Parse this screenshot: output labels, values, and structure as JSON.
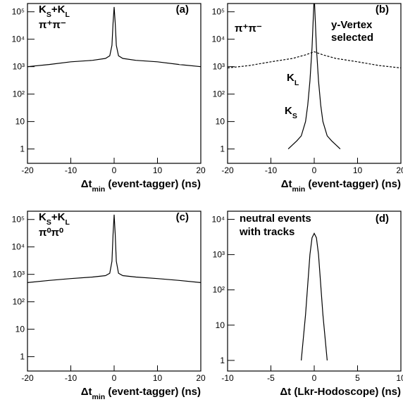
{
  "chart_data": [
    {
      "type": "line",
      "log_y": true,
      "xlim": [
        -20,
        20
      ],
      "xticks": [
        -20,
        -10,
        0,
        10,
        20
      ],
      "ylim": [
        0.3,
        200000
      ],
      "yticks": [
        1,
        10,
        {
          "value": 100,
          "label": "10²"
        },
        {
          "value": 1000,
          "label": "10³"
        },
        {
          "value": 10000,
          "label": "10⁴"
        },
        {
          "value": 100000,
          "label": "10⁵"
        }
      ],
      "xlabel": [
        {
          "t": "Δt"
        },
        {
          "t": "min",
          "sub": true
        },
        {
          "t": " (event-tagger) (ns)"
        }
      ],
      "annotations": [
        {
          "parts": [
            {
              "t": "(a)"
            }
          ]
        },
        {
          "parts": [
            {
              "t": "K"
            },
            {
              "t": "S",
              "sub": true
            },
            {
              "t": "+K"
            },
            {
              "t": "L",
              "sub": true
            }
          ]
        },
        {
          "parts": [
            {
              "t": "π⁺π⁻"
            }
          ]
        }
      ],
      "series": [
        {
          "color": "#000",
          "x": [
            -20,
            -15,
            -10,
            -5,
            -2,
            -1,
            -0.5,
            -0.25,
            0,
            0.25,
            0.5,
            1,
            2,
            5,
            10,
            15,
            20
          ],
          "values": [
            1000,
            1200,
            1500,
            1700,
            2000,
            2500,
            6000,
            40000,
            150000,
            40000,
            6000,
            2500,
            2000,
            1700,
            1500,
            1200,
            1000
          ]
        }
      ]
    },
    {
      "type": "line",
      "log_y": true,
      "xlim": [
        -20,
        20
      ],
      "xticks": [
        -20,
        -10,
        0,
        10,
        20
      ],
      "ylim": [
        0.3,
        200000
      ],
      "yticks": [
        1,
        10,
        {
          "value": 100,
          "label": "10²"
        },
        {
          "value": 1000,
          "label": "10³"
        },
        {
          "value": 10000,
          "label": "10⁴"
        },
        {
          "value": 100000,
          "label": "10⁵"
        }
      ],
      "xlabel": [
        {
          "t": "Δt"
        },
        {
          "t": "min",
          "sub": true
        },
        {
          "t": " (event-tagger) (ns)"
        }
      ],
      "annotations": [
        {
          "parts": [
            {
              "t": "(b)"
            }
          ]
        },
        {
          "parts": [
            {
              "t": "π⁺π⁻"
            }
          ]
        },
        {
          "parts": [
            {
              "t": "y-Vertex"
            }
          ]
        },
        {
          "parts": [
            {
              "t": "selected"
            }
          ]
        },
        {
          "parts": [
            {
              "t": "K"
            },
            {
              "t": "L",
              "sub": true
            }
          ]
        },
        {
          "parts": [
            {
              "t": "K"
            },
            {
              "t": "S",
              "sub": true
            }
          ]
        }
      ],
      "series": [
        {
          "color": "#000",
          "dash": true,
          "x": [
            -20,
            -15,
            -10,
            -5,
            -2,
            0,
            2,
            5,
            10,
            15,
            20
          ],
          "values": [
            900,
            1100,
            1500,
            2000,
            2700,
            3500,
            2700,
            2000,
            1500,
            1100,
            900
          ]
        },
        {
          "color": "#000",
          "x": [
            -6,
            -4,
            -3,
            -2,
            -1.5,
            -1,
            -0.5,
            0,
            0.5,
            1,
            1.5,
            2,
            3,
            4,
            6
          ],
          "values": [
            1,
            2,
            3,
            10,
            40,
            300,
            5000,
            400000,
            5000,
            300,
            40,
            10,
            3,
            2,
            1
          ]
        }
      ]
    },
    {
      "type": "line",
      "log_y": true,
      "xlim": [
        -20,
        20
      ],
      "xticks": [
        -20,
        -10,
        0,
        10,
        20
      ],
      "ylim": [
        0.3,
        200000
      ],
      "yticks": [
        1,
        10,
        {
          "value": 100,
          "label": "10²"
        },
        {
          "value": 1000,
          "label": "10³"
        },
        {
          "value": 10000,
          "label": "10⁴"
        },
        {
          "value": 100000,
          "label": "10⁵"
        }
      ],
      "xlabel": [
        {
          "t": "Δt"
        },
        {
          "t": "min",
          "sub": true
        },
        {
          "t": " (event-tagger) (ns)"
        }
      ],
      "annotations": [
        {
          "parts": [
            {
              "t": "(c)"
            }
          ]
        },
        {
          "parts": [
            {
              "t": "K"
            },
            {
              "t": "S",
              "sub": true
            },
            {
              "t": "+K"
            },
            {
              "t": "L",
              "sub": true
            }
          ]
        },
        {
          "parts": [
            {
              "t": "π⁰π⁰"
            }
          ]
        }
      ],
      "series": [
        {
          "color": "#000",
          "x": [
            -20,
            -15,
            -10,
            -5,
            -2,
            -1,
            -0.5,
            -0.25,
            0,
            0.25,
            0.5,
            1,
            2,
            5,
            10,
            15,
            20
          ],
          "values": [
            500,
            600,
            700,
            800,
            900,
            1100,
            3000,
            30000,
            150000,
            30000,
            3000,
            1100,
            900,
            800,
            700,
            600,
            500
          ]
        }
      ]
    },
    {
      "type": "line",
      "log_y": true,
      "xlim": [
        -10,
        10
      ],
      "xticks": [
        -10,
        -5,
        0,
        5,
        10
      ],
      "ylim": [
        0.5,
        17000
      ],
      "yticks": [
        1,
        10,
        {
          "value": 100,
          "label": "10²"
        },
        {
          "value": 1000,
          "label": "10³"
        },
        {
          "value": 10000,
          "label": "10⁴"
        }
      ],
      "xlabel": [
        {
          "t": "Δt (Lkr-Hodoscope) (ns)"
        }
      ],
      "annotations": [
        {
          "parts": [
            {
              "t": "(d)"
            }
          ]
        },
        {
          "parts": [
            {
              "t": "neutral events"
            }
          ]
        },
        {
          "parts": [
            {
              "t": "with tracks"
            }
          ]
        }
      ],
      "series": [
        {
          "color": "#000",
          "x": [
            -1.5,
            -1,
            -0.5,
            -0.25,
            0,
            0.25,
            0.5,
            1,
            1.5
          ],
          "values": [
            1,
            20,
            1000,
            3000,
            4000,
            3000,
            1000,
            20,
            1
          ]
        }
      ]
    }
  ]
}
